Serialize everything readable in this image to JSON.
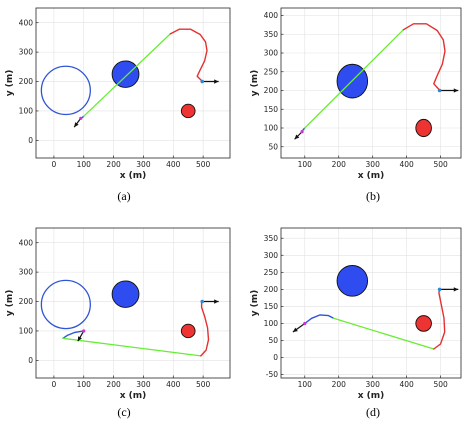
{
  "chart_data": [
    {
      "type": "scatter",
      "caption": "(a)",
      "xlabel": "x (m)",
      "ylabel": "y (m)",
      "xlim": [
        -60,
        590
      ],
      "ylim": [
        -60,
        450
      ],
      "xticks": [
        0,
        100,
        200,
        300,
        400,
        500
      ],
      "yticks": [
        0,
        100,
        200,
        300,
        400
      ],
      "grid": true,
      "obstacles": [
        {
          "cx": 240,
          "cy": 225,
          "r": 45,
          "color": "#2f4cf0"
        },
        {
          "cx": 450,
          "cy": 100,
          "r": 23,
          "color": "#ee3333"
        }
      ],
      "turn_circle": {
        "cx": 40,
        "cy": 170,
        "r": 82,
        "color": "#2e55d6"
      },
      "path": [
        {
          "type": "arc",
          "color": "#2e55d6",
          "points": [
            [
              88,
              72
            ],
            [
              94,
              77
            ],
            [
              100,
              82
            ]
          ]
        },
        {
          "type": "line",
          "color": "#66ee33",
          "points": [
            [
              100,
              82
            ],
            [
              390,
              362
            ]
          ]
        },
        {
          "type": "arc",
          "color": "#e53030",
          "points": [
            [
              390,
              362
            ],
            [
              420,
              378
            ],
            [
              458,
              378
            ],
            [
              490,
              360
            ],
            [
              508,
              335
            ],
            [
              513,
              305
            ],
            [
              505,
              270
            ],
            [
              490,
              240
            ],
            [
              480,
              218
            ],
            [
              495,
              203
            ]
          ]
        }
      ],
      "start": {
        "x": 90,
        "y": 75,
        "dx": -22,
        "dy": -30
      },
      "goal": {
        "x": 497,
        "y": 200,
        "dx": 55,
        "dy": 0
      }
    },
    {
      "type": "scatter",
      "caption": "(b)",
      "xlabel": "x (m)",
      "ylabel": "y (m)",
      "xlim": [
        30,
        560
      ],
      "ylim": [
        20,
        420
      ],
      "xticks": [
        100,
        200,
        300,
        400,
        500
      ],
      "yticks": [
        50,
        100,
        150,
        200,
        250,
        300,
        350,
        400
      ],
      "grid": true,
      "obstacles": [
        {
          "cx": 240,
          "cy": 225,
          "r": 45,
          "color": "#2f4cf0"
        },
        {
          "cx": 450,
          "cy": 100,
          "r": 23,
          "color": "#ee3333"
        }
      ],
      "path": [
        {
          "type": "arc",
          "color": "#2e55d6",
          "points": [
            [
              90,
              90
            ],
            [
              95,
              95
            ],
            [
              100,
              100
            ]
          ]
        },
        {
          "type": "line",
          "color": "#66ee33",
          "points": [
            [
              100,
              100
            ],
            [
              390,
              362
            ]
          ]
        },
        {
          "type": "arc",
          "color": "#e53030",
          "points": [
            [
              390,
              362
            ],
            [
              420,
              378
            ],
            [
              458,
              378
            ],
            [
              490,
              360
            ],
            [
              508,
              335
            ],
            [
              513,
              305
            ],
            [
              505,
              270
            ],
            [
              490,
              240
            ],
            [
              480,
              218
            ],
            [
              495,
              203
            ]
          ]
        }
      ],
      "start": {
        "x": 92,
        "y": 90,
        "dx": -22,
        "dy": -20
      },
      "goal": {
        "x": 497,
        "y": 200,
        "dx": 55,
        "dy": 0
      }
    },
    {
      "type": "scatter",
      "caption": "(c)",
      "xlabel": "x (m)",
      "ylabel": "y (m)",
      "xlim": [
        -60,
        590
      ],
      "ylim": [
        -60,
        450
      ],
      "xticks": [
        0,
        100,
        200,
        300,
        400,
        500
      ],
      "yticks": [
        0,
        100,
        200,
        300,
        400
      ],
      "grid": true,
      "obstacles": [
        {
          "cx": 240,
          "cy": 225,
          "r": 45,
          "color": "#2f4cf0"
        },
        {
          "cx": 450,
          "cy": 100,
          "r": 23,
          "color": "#ee3333"
        }
      ],
      "turn_circle": {
        "cx": 40,
        "cy": 190,
        "r": 82,
        "color": "#2e55d6"
      },
      "path": [
        {
          "type": "arc",
          "color": "#2e55d6",
          "points": [
            [
              100,
              100
            ],
            [
              70,
              95
            ],
            [
              45,
              85
            ],
            [
              30,
              75
            ]
          ]
        },
        {
          "type": "line",
          "color": "#66ee33",
          "points": [
            [
              30,
              75
            ],
            [
              492,
              15
            ]
          ]
        },
        {
          "type": "arc",
          "color": "#e53030",
          "points": [
            [
              492,
              15
            ],
            [
              510,
              35
            ],
            [
              518,
              70
            ],
            [
              515,
              110
            ],
            [
              505,
              150
            ],
            [
              495,
              180
            ],
            [
              495,
              200
            ]
          ]
        }
      ],
      "start": {
        "x": 100,
        "y": 100,
        "dx": -20,
        "dy": -35
      },
      "goal": {
        "x": 497,
        "y": 200,
        "dx": 55,
        "dy": 0
      }
    },
    {
      "type": "scatter",
      "caption": "(d)",
      "xlabel": "x (m)",
      "ylabel": "y (m)",
      "xlim": [
        30,
        560
      ],
      "ylim": [
        -60,
        380
      ],
      "xticks": [
        100,
        200,
        300,
        400,
        500
      ],
      "yticks": [
        -50,
        0,
        50,
        100,
        150,
        200,
        250,
        300,
        350
      ],
      "grid": true,
      "obstacles": [
        {
          "cx": 240,
          "cy": 225,
          "r": 45,
          "color": "#2f4cf0"
        },
        {
          "cx": 450,
          "cy": 100,
          "r": 23,
          "color": "#ee3333"
        }
      ],
      "path": [
        {
          "type": "arc",
          "color": "#2e55d6",
          "points": [
            [
              100,
              100
            ],
            [
              120,
              115
            ],
            [
              145,
              125
            ],
            [
              170,
              123
            ],
            [
              185,
              115
            ]
          ]
        },
        {
          "type": "line",
          "color": "#66ee33",
          "points": [
            [
              185,
              115
            ],
            [
              480,
              25
            ]
          ]
        },
        {
          "type": "arc",
          "color": "#e53030",
          "points": [
            [
              480,
              25
            ],
            [
              500,
              40
            ],
            [
              512,
              75
            ],
            [
              510,
              115
            ],
            [
              502,
              155
            ],
            [
              495,
              190
            ],
            [
              497,
              200
            ]
          ]
        }
      ],
      "start": {
        "x": 100,
        "y": 100,
        "dx": -35,
        "dy": -25
      },
      "goal": {
        "x": 497,
        "y": 200,
        "dx": 55,
        "dy": 0
      }
    }
  ]
}
